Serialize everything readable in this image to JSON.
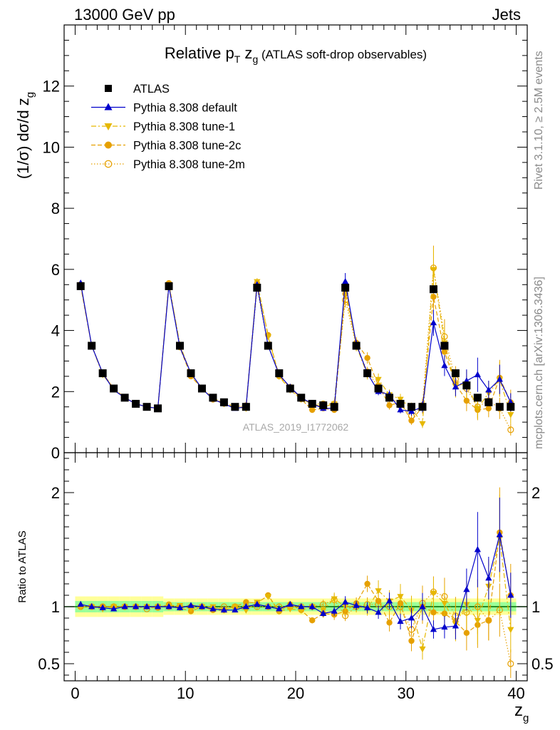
{
  "header": {
    "energy_label": "13000 GeV pp",
    "category_label": "Jets",
    "side_text_top": "Rivet 3.1.10, ≥ 2.5M events",
    "side_text_bottom": "mcplots.cern.ch [arXiv:1306.3436]",
    "analysis_id": "ATLAS_2019_I1772062"
  },
  "chart_data": {
    "type": "scatter",
    "title": "Relative p_T z_g (ATLAS soft-drop observables)",
    "title_parts": {
      "main": "Relative p",
      "sub": "T",
      "mid": " z",
      "sub2": "g",
      "paren": " (ATLAS soft-drop observables)"
    },
    "xlabel": "z_g",
    "xlabel_parts": {
      "main": "z",
      "sub": "g"
    },
    "ylabel": "(1/σ) dσ/d z_g",
    "ylabel_parts": {
      "main": "(1/σ) dσ/d z",
      "sub": "g"
    },
    "ratio_ylabel": "Ratio to ATLAS",
    "xlim": [
      -1,
      41
    ],
    "ylim": [
      0,
      14
    ],
    "ratio_ylim": [
      0.35,
      2.35
    ],
    "x_ticks": [
      0,
      10,
      20,
      30,
      40
    ],
    "y_ticks": [
      0,
      2,
      4,
      6,
      8,
      10,
      12
    ],
    "ratio_ticks": [
      0.5,
      1,
      2
    ],
    "ratio_tick_labels": [
      "0.5",
      "1",
      "2"
    ],
    "legend_position": "top-left",
    "x": [
      0.5,
      1.5,
      2.5,
      3.5,
      4.5,
      5.5,
      6.5,
      7.5,
      8.5,
      9.5,
      10.5,
      11.5,
      12.5,
      13.5,
      14.5,
      15.5,
      16.5,
      17.5,
      18.5,
      19.5,
      20.5,
      21.5,
      22.5,
      23.5,
      24.5,
      25.5,
      26.5,
      27.5,
      28.5,
      29.5,
      30.5,
      31.5,
      32.5,
      33.5,
      34.5,
      35.5,
      36.5,
      37.5,
      38.5,
      39.5
    ],
    "series": [
      {
        "name": "ATLAS",
        "color": "#000000",
        "marker": "square",
        "line": "none",
        "values": [
          5.45,
          3.5,
          2.6,
          2.1,
          1.8,
          1.6,
          1.5,
          1.45,
          5.45,
          3.5,
          2.6,
          2.1,
          1.8,
          1.65,
          1.5,
          1.5,
          5.4,
          3.5,
          2.6,
          2.1,
          1.8,
          1.6,
          1.55,
          1.5,
          5.4,
          3.5,
          2.6,
          2.1,
          1.8,
          1.6,
          1.5,
          1.5,
          5.35,
          3.5,
          2.6,
          2.2,
          1.8,
          1.65,
          1.5,
          1.5
        ],
        "ratio": [
          1,
          1,
          1,
          1,
          1,
          1,
          1,
          1,
          1,
          1,
          1,
          1,
          1,
          1,
          1,
          1,
          1,
          1,
          1,
          1,
          1,
          1,
          1,
          1,
          1,
          1,
          1,
          1,
          1,
          1,
          1,
          1,
          1,
          1,
          1,
          1,
          1,
          1,
          1,
          1
        ],
        "ratio_band": [
          0.05,
          0.05,
          0.05,
          0.05,
          0.05,
          0.05,
          0.05,
          0.05,
          0.04,
          0.04,
          0.04,
          0.04,
          0.04,
          0.04,
          0.04,
          0.04,
          0.04,
          0.04,
          0.04,
          0.04,
          0.04,
          0.04,
          0.04,
          0.04,
          0.04,
          0.04,
          0.04,
          0.04,
          0.04,
          0.04,
          0.04,
          0.04,
          0.04,
          0.04,
          0.04,
          0.04,
          0.04,
          0.04,
          0.04,
          0.04
        ]
      },
      {
        "name": "Pythia 8.308 default",
        "color": "#0000cc",
        "marker": "triangle-up",
        "line": "solid",
        "values": [
          5.55,
          3.5,
          2.6,
          2.05,
          1.8,
          1.6,
          1.5,
          1.45,
          5.45,
          3.45,
          2.6,
          2.1,
          1.75,
          1.6,
          1.45,
          1.5,
          5.5,
          3.5,
          2.55,
          2.15,
          1.8,
          1.6,
          1.45,
          1.45,
          5.6,
          3.55,
          2.6,
          2.0,
          1.9,
          1.4,
          1.35,
          1.5,
          4.25,
          2.85,
          2.15,
          2.35,
          2.55,
          2.05,
          2.4,
          1.65
        ],
        "ratio": [
          1.02,
          1.0,
          0.99,
          0.98,
          1.0,
          1.0,
          1.0,
          1.0,
          1.0,
          0.99,
          1.01,
          1.0,
          0.98,
          0.97,
          0.97,
          1.0,
          1.02,
          1.0,
          0.98,
          1.02,
          1.0,
          1.0,
          0.94,
          0.96,
          1.04,
          1.01,
          0.99,
          0.95,
          1.05,
          0.87,
          0.9,
          1.0,
          0.8,
          0.82,
          0.83,
          1.15,
          1.5,
          1.25,
          1.63,
          1.1
        ],
        "ratio_err": [
          0.01,
          0.01,
          0.01,
          0.01,
          0.01,
          0.01,
          0.01,
          0.01,
          0.01,
          0.01,
          0.01,
          0.01,
          0.01,
          0.01,
          0.01,
          0.01,
          0.01,
          0.01,
          0.02,
          0.02,
          0.02,
          0.03,
          0.03,
          0.04,
          0.05,
          0.04,
          0.05,
          0.06,
          0.07,
          0.08,
          0.1,
          0.12,
          0.1,
          0.12,
          0.14,
          0.16,
          0.22,
          0.15,
          0.2,
          0.18
        ]
      },
      {
        "name": "Pythia 8.308 tune-1",
        "color": "#e6b800",
        "marker": "triangle-down",
        "line": "dashdot",
        "values": [
          5.5,
          3.5,
          2.55,
          2.1,
          1.8,
          1.6,
          1.5,
          1.45,
          5.5,
          3.55,
          2.55,
          2.1,
          1.8,
          1.6,
          1.5,
          1.45,
          5.6,
          3.8,
          2.5,
          2.05,
          1.75,
          1.6,
          1.5,
          1.6,
          5.4,
          3.5,
          2.55,
          2.4,
          1.9,
          1.75,
          1.45,
          0.95,
          6.0,
          3.6,
          2.2,
          2.25,
          1.45,
          1.95,
          2.4,
          1.25
        ],
        "ratio": [
          1.0,
          1.0,
          0.98,
          1.0,
          1.0,
          1.0,
          1.0,
          1.0,
          1.01,
          1.01,
          0.98,
          1.0,
          1.0,
          0.97,
          1.0,
          0.97,
          1.04,
          1.09,
          0.96,
          0.98,
          0.97,
          1.0,
          0.97,
          1.07,
          1.0,
          1.0,
          0.98,
          1.14,
          1.05,
          1.09,
          0.97,
          0.63,
          1.12,
          1.03,
          0.85,
          1.02,
          0.88,
          1.18,
          1.6,
          0.8
        ],
        "ratio_err": [
          0.01,
          0.01,
          0.01,
          0.01,
          0.01,
          0.01,
          0.01,
          0.01,
          0.01,
          0.01,
          0.01,
          0.01,
          0.01,
          0.01,
          0.01,
          0.01,
          0.02,
          0.02,
          0.02,
          0.02,
          0.03,
          0.03,
          0.04,
          0.05,
          0.05,
          0.05,
          0.06,
          0.08,
          0.09,
          0.1,
          0.13,
          0.15,
          0.12,
          0.15,
          0.18,
          0.2,
          0.24,
          0.2,
          0.24,
          0.25
        ]
      },
      {
        "name": "Pythia 8.308 tune-2c",
        "color": "#e6a000",
        "marker": "circle",
        "line": "dashed",
        "values": [
          5.45,
          3.5,
          2.6,
          2.1,
          1.8,
          1.6,
          1.5,
          1.45,
          5.55,
          3.45,
          2.5,
          2.1,
          1.75,
          1.6,
          1.5,
          1.55,
          5.55,
          3.85,
          2.5,
          2.15,
          1.75,
          1.4,
          1.45,
          1.4,
          5.2,
          3.6,
          3.1,
          2.2,
          1.55,
          1.65,
          1.05,
          1.5,
          5.1,
          3.3,
          2.25,
          1.7,
          1.4,
          1.45,
          2.45,
          1.65
        ],
        "ratio": [
          1.0,
          1.0,
          1.0,
          1.0,
          1.0,
          1.0,
          1.0,
          0.99,
          1.02,
          0.99,
          0.96,
          1.0,
          0.97,
          0.97,
          1.0,
          1.04,
          1.03,
          1.1,
          0.96,
          1.02,
          0.97,
          0.88,
          0.94,
          0.93,
          0.96,
          1.03,
          1.2,
          1.05,
          0.86,
          1.03,
          0.7,
          1.0,
          0.95,
          0.94,
          0.87,
          0.77,
          0.84,
          0.88,
          1.65,
          1.1
        ],
        "ratio_err": [
          0.01,
          0.01,
          0.01,
          0.01,
          0.01,
          0.01,
          0.01,
          0.01,
          0.01,
          0.01,
          0.01,
          0.01,
          0.01,
          0.01,
          0.01,
          0.01,
          0.02,
          0.02,
          0.02,
          0.02,
          0.03,
          0.03,
          0.04,
          0.05,
          0.05,
          0.05,
          0.06,
          0.08,
          0.09,
          0.1,
          0.13,
          0.15,
          0.12,
          0.15,
          0.18,
          0.2,
          0.24,
          0.2,
          0.24,
          0.25
        ]
      },
      {
        "name": "Pythia 8.308 tune-2m",
        "color": "#e6a000",
        "marker": "circle-open",
        "line": "dotted",
        "values": [
          5.5,
          3.5,
          2.6,
          2.1,
          1.8,
          1.6,
          1.5,
          1.45,
          5.5,
          3.5,
          2.6,
          2.1,
          1.75,
          1.65,
          1.5,
          1.5,
          5.4,
          3.5,
          2.6,
          2.1,
          1.8,
          1.6,
          1.6,
          1.6,
          5.0,
          3.5,
          2.65,
          2.15,
          1.8,
          1.6,
          1.2,
          1.55,
          6.05,
          3.8,
          2.4,
          2.1,
          1.5,
          1.7,
          1.45,
          0.75
        ],
        "ratio": [
          1.0,
          1.0,
          1.0,
          1.0,
          1.0,
          1.0,
          0.98,
          1.0,
          1.0,
          1.0,
          1.0,
          1.0,
          0.98,
          1.0,
          1.0,
          1.0,
          1.0,
          1.0,
          1.0,
          1.0,
          1.0,
          1.0,
          1.02,
          1.06,
          0.92,
          1.0,
          1.02,
          1.02,
          1.0,
          1.0,
          0.8,
          1.03,
          1.13,
          1.09,
          0.92,
          0.95,
          1.0,
          0.88,
          0.97,
          0.5
        ],
        "ratio_err": [
          0.01,
          0.01,
          0.01,
          0.01,
          0.01,
          0.01,
          0.01,
          0.01,
          0.01,
          0.01,
          0.01,
          0.01,
          0.01,
          0.01,
          0.01,
          0.01,
          0.02,
          0.02,
          0.02,
          0.02,
          0.03,
          0.03,
          0.04,
          0.05,
          0.05,
          0.05,
          0.06,
          0.08,
          0.09,
          0.1,
          0.13,
          0.15,
          0.12,
          0.15,
          0.18,
          0.2,
          0.24,
          0.2,
          0.24,
          0.25
        ]
      }
    ]
  }
}
